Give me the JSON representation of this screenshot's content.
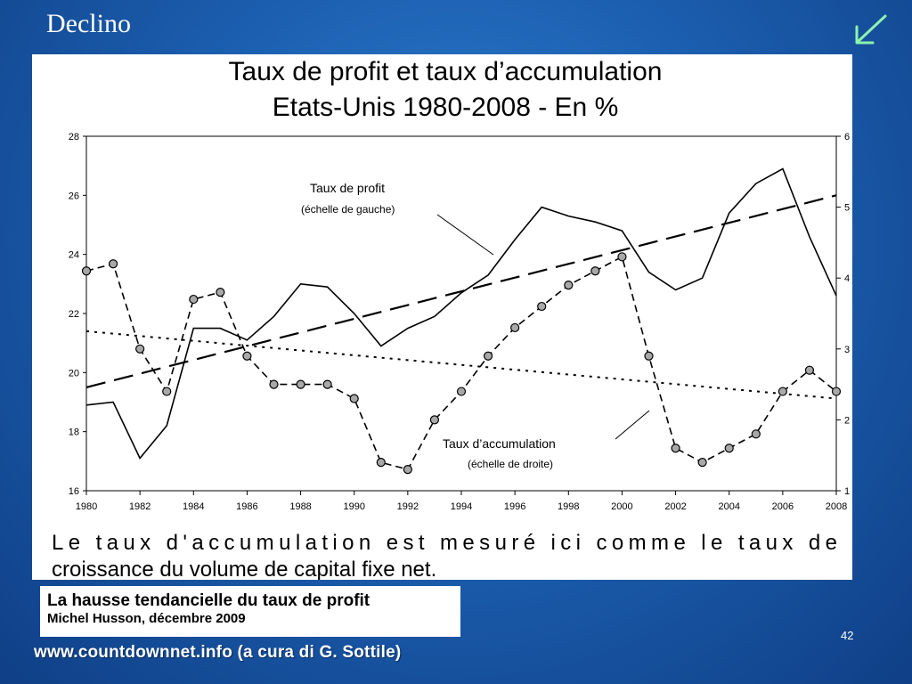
{
  "slide": {
    "title": "Declino",
    "page_number": "42",
    "footer": "www.countdownnet.info (a cura di G. Sottile)"
  },
  "caption": {
    "title": "La hausse tendancielle du taux de profit",
    "author": "Michel Husson, décembre 2009"
  },
  "icons": {
    "back": "back-arrow-icon"
  },
  "colors": {
    "background": "#1c5fb0",
    "accent": "#8ef2b0"
  },
  "chart_data": {
    "type": "line",
    "title": "Taux de profit et taux d’accumulation",
    "subtitle": "Etats-Unis 1980-2008 - En %",
    "xlabel": "",
    "ylabel": "",
    "x": [
      1980,
      1981,
      1982,
      1983,
      1984,
      1985,
      1986,
      1987,
      1988,
      1989,
      1990,
      1991,
      1992,
      1993,
      1994,
      1995,
      1996,
      1997,
      1998,
      1999,
      2000,
      2001,
      2002,
      2003,
      2004,
      2005,
      2006,
      2007,
      2008
    ],
    "x_ticks": [
      "1980",
      "1982",
      "1984",
      "1986",
      "1988",
      "1990",
      "1992",
      "1994",
      "1996",
      "1998",
      "2000",
      "2002",
      "2004",
      "2006",
      "2008"
    ],
    "ylim_left": [
      16,
      28
    ],
    "y_ticks_left": [
      "16",
      "18",
      "20",
      "22",
      "24",
      "26",
      "28"
    ],
    "ylim_right": [
      1,
      6
    ],
    "y_ticks_right": [
      "1",
      "2",
      "3",
      "4",
      "5",
      "6"
    ],
    "series": [
      {
        "name": "Taux de profit",
        "axis": "left",
        "style": "solid",
        "values": [
          18.9,
          19.0,
          17.1,
          18.2,
          21.5,
          21.5,
          21.1,
          21.9,
          23.0,
          22.9,
          22.0,
          20.9,
          21.5,
          21.9,
          22.7,
          23.3,
          24.5,
          25.6,
          25.3,
          25.1,
          24.8,
          23.4,
          22.8,
          23.2,
          25.4,
          26.4,
          26.9,
          24.6,
          22.6
        ]
      },
      {
        "name": "Taux d’accumulation",
        "axis": "right",
        "style": "dashed-markers",
        "values": [
          4.1,
          4.2,
          3.0,
          2.4,
          3.7,
          3.8,
          2.9,
          2.5,
          2.5,
          2.5,
          2.3,
          1.4,
          1.3,
          2.0,
          2.4,
          2.9,
          3.3,
          3.6,
          3.9,
          4.1,
          4.3,
          2.9,
          1.6,
          1.4,
          1.6,
          1.8,
          2.4,
          2.7,
          2.4
        ]
      }
    ],
    "trend_lines": [
      {
        "of": "Taux de profit",
        "axis": "left",
        "style": "long-dash",
        "start": [
          1980,
          19.5
        ],
        "end": [
          2008,
          26.0
        ]
      },
      {
        "of": "Taux d’accumulation",
        "axis": "right",
        "style": "dotted",
        "start": [
          1980,
          3.25
        ],
        "end": [
          2008,
          2.3
        ]
      }
    ],
    "annotations": [
      {
        "label": "Taux de profit",
        "sublabel": "(échelle de gauche)"
      },
      {
        "label": "Taux d’accumulation",
        "sublabel": "(échelle de droite)"
      }
    ],
    "note_line1": "Le taux d'accumulation est mesuré ici comme le taux de",
    "note_line2": "croissance du volume de capital fixe net."
  }
}
